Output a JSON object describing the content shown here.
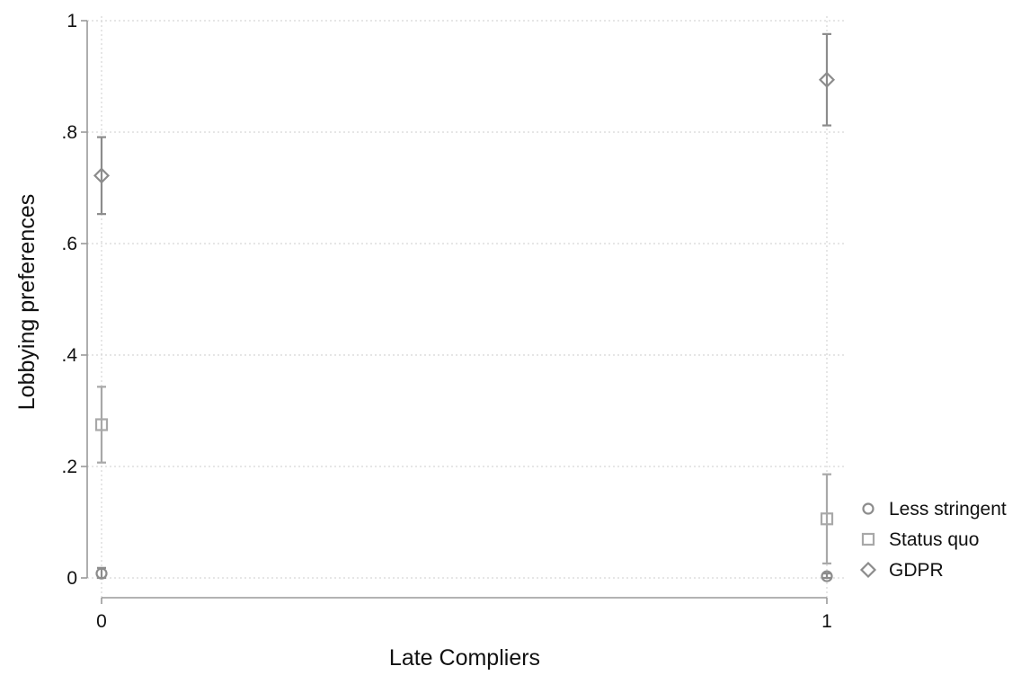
{
  "chart_data": {
    "type": "scatter",
    "title": "",
    "xlabel": "Late Compliers",
    "ylabel": "Lobbying preferences",
    "x": [
      0,
      1
    ],
    "xticks": [
      "0",
      "1"
    ],
    "xlim": [
      0,
      1
    ],
    "yticks": [
      "0",
      ".2",
      ".4",
      ".6",
      ".8",
      "1"
    ],
    "ylim": [
      0,
      1
    ],
    "grid": true,
    "legend_position": "bottom-right",
    "series": [
      {
        "name": "Less stringent",
        "marker": "circle",
        "color": "#8c8c8c",
        "values": [
          0.008,
          0.003
        ],
        "ci_low": [
          0.0,
          0.0
        ],
        "ci_high": [
          0.018,
          0.008
        ]
      },
      {
        "name": "Status quo",
        "marker": "square",
        "color": "#a8a8a8",
        "values": [
          0.275,
          0.106
        ],
        "ci_low": [
          0.207,
          0.026
        ],
        "ci_high": [
          0.343,
          0.186
        ]
      },
      {
        "name": "GDPR",
        "marker": "diamond",
        "color": "#8c8c8c",
        "values": [
          0.722,
          0.894
        ],
        "ci_low": [
          0.653,
          0.812
        ],
        "ci_high": [
          0.791,
          0.976
        ]
      }
    ]
  }
}
